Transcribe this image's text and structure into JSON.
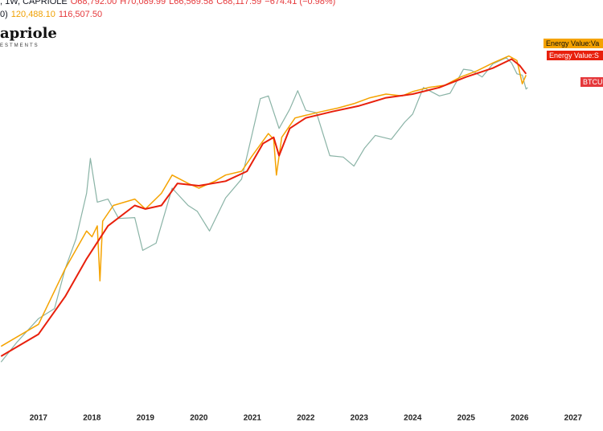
{
  "header": {
    "symbol": ", 1W, CAPRIOLE",
    "open": "O68,792.00",
    "high": "H70,089.99",
    "low": "L66,569.58",
    "close": "C68,117.59",
    "change": "−674.41 (−0.98%)",
    "indicator": "0)",
    "indicator_value_1": "120,488.10",
    "indicator_value_2": "116,507.50",
    "logo": "apriole",
    "logo_sub": "ESTMENTS"
  },
  "chart_data": {
    "type": "line",
    "log_scale": true,
    "xlim": [
      2016.28,
      2027.56
    ],
    "ylim": [
      200,
      350000
    ],
    "xticks": [
      2017,
      2018,
      2019,
      2020,
      2021,
      2022,
      2023,
      2024,
      2025,
      2026,
      2027
    ],
    "series": [
      {
        "name": "BTCU",
        "color": "#8ab3a6",
        "x": [
          2016.3,
          2016.6,
          2017.0,
          2017.3,
          2017.5,
          2017.7,
          2017.9,
          2017.97,
          2018.1,
          2018.3,
          2018.5,
          2018.8,
          2018.95,
          2019.2,
          2019.5,
          2019.8,
          2019.97,
          2020.2,
          2020.5,
          2020.8,
          2020.99,
          2021.15,
          2021.3,
          2021.5,
          2021.7,
          2021.85,
          2022.0,
          2022.2,
          2022.45,
          2022.7,
          2022.9,
          2023.1,
          2023.3,
          2023.6,
          2023.85,
          2024.0,
          2024.2,
          2024.5,
          2024.7,
          2024.95,
          2025.1,
          2025.3,
          2025.5,
          2025.75,
          2025.85,
          2025.95,
          2026.05,
          2026.12,
          2026.15
        ],
        "values": [
          450,
          650,
          1000,
          1200,
          2500,
          4300,
          10000,
          19000,
          8500,
          9000,
          6300,
          6400,
          3500,
          4000,
          11000,
          8000,
          7200,
          5000,
          9200,
          13000,
          29000,
          57000,
          60000,
          33000,
          47000,
          66000,
          46000,
          44000,
          20000,
          19500,
          16500,
          23000,
          29000,
          27000,
          37000,
          43000,
          70000,
          60000,
          63000,
          98000,
          96000,
          85000,
          108000,
          121000,
          110000,
          90000,
          88000,
          68000,
          70000
        ]
      },
      {
        "name": "Energy Value:Va",
        "color": "#f5a300",
        "x": [
          2016.3,
          2017.0,
          2017.5,
          2017.9,
          2018.0,
          2018.1,
          2018.15,
          2018.2,
          2018.4,
          2018.8,
          2019.0,
          2019.3,
          2019.5,
          2019.8,
          2020.0,
          2020.3,
          2020.5,
          2020.8,
          2021.0,
          2021.3,
          2021.4,
          2021.45,
          2021.55,
          2021.8,
          2022.0,
          2022.3,
          2022.6,
          2022.9,
          2023.2,
          2023.5,
          2023.8,
          2024.0,
          2024.3,
          2024.6,
          2024.9,
          2025.2,
          2025.5,
          2025.8,
          2025.95,
          2026.05,
          2026.12
        ],
        "values": [
          600,
          900,
          2500,
          5000,
          4500,
          5500,
          2000,
          6000,
          8000,
          9000,
          7500,
          10000,
          14000,
          12000,
          11000,
          12500,
          14000,
          15000,
          20000,
          30000,
          27000,
          14000,
          28000,
          40000,
          42000,
          45000,
          48000,
          52000,
          58000,
          62000,
          60000,
          65000,
          70000,
          73000,
          85000,
          95000,
          110000,
          125000,
          115000,
          75000,
          88000
        ]
      },
      {
        "name": "Energy Value:S",
        "color": "#e8200c",
        "x": [
          2016.3,
          2017.0,
          2017.5,
          2017.9,
          2018.3,
          2018.8,
          2019.0,
          2019.3,
          2019.6,
          2020.0,
          2020.5,
          2020.9,
          2021.2,
          2021.4,
          2021.5,
          2021.7,
          2022.0,
          2022.5,
          2023.0,
          2023.5,
          2024.0,
          2024.5,
          2025.0,
          2025.5,
          2025.85,
          2026.0,
          2026.12
        ],
        "values": [
          500,
          750,
          1500,
          3000,
          5500,
          8000,
          7500,
          8000,
          12000,
          11500,
          12500,
          15000,
          25000,
          28000,
          20000,
          33000,
          40000,
          45000,
          50000,
          58000,
          62000,
          70000,
          85000,
          100000,
          118000,
          105000,
          90000
        ]
      }
    ]
  }
}
